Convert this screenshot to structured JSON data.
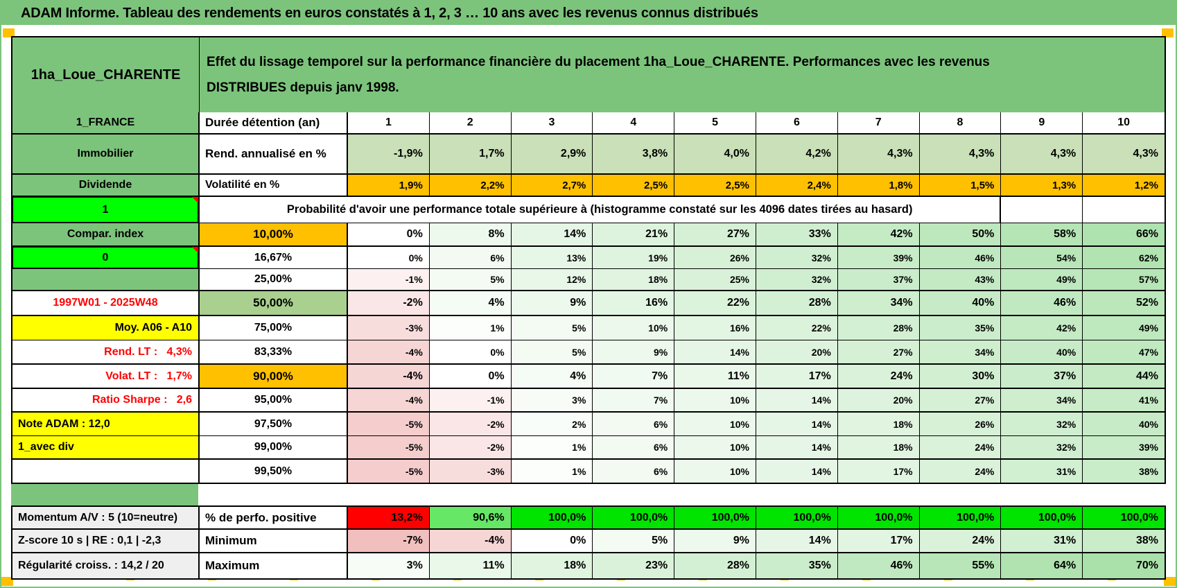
{
  "title": "ADAM Informe. Tableau des rendements en euros constatés à 1, 2, 3 … 10 ans avec les revenus connus distribués",
  "header": {
    "instrument": "1ha_Loue_CHARENTE",
    "description_lines": [
      "Effet du lissage temporel sur la performance financière du placement 1ha_Loue_CHARENTE. Performances avec les revenus",
      "DISTRIBUES depuis janv 1998."
    ]
  },
  "colors": {
    "frame_green": "#7cc47c",
    "cell_green": "#7cc47c",
    "bright_green": "#00ff00",
    "mid_green": "#a9d08e",
    "sage_green": "#c9e0b8",
    "orange": "#ffc000",
    "yellow": "#ffff00",
    "gray": "#efefef",
    "red_text": "#ff0000",
    "perfo_full_green": "#00e400",
    "perfo_light_green": "#66e766",
    "perfo_red": "#ff0000",
    "corner_marker": "#ffc000"
  },
  "grid": {
    "prob_header": "Probabilité d'avoir une performance totale supérieure à (histogramme constaté sur les 4096 dates tirées au hasard)",
    "rows": [
      {
        "name": "duration-header",
        "left": {
          "t": "1_FRANCE",
          "bg": "green",
          "align": "center"
        },
        "label": {
          "t": "Durée détention (an)",
          "align": "left"
        },
        "style": "plain",
        "bold": true,
        "align": "center",
        "thickB": true,
        "cells": [
          "1",
          "2",
          "3",
          "4",
          "5",
          "6",
          "7",
          "8",
          "9",
          "10"
        ]
      },
      {
        "name": "annualized-return",
        "left": {
          "t": "Immobilier",
          "bg": "green",
          "align": "center"
        },
        "label": {
          "t": "Rend. annualisé en %",
          "align": "left"
        },
        "style": "sage",
        "bold": true,
        "thickB": true,
        "cells": [
          "-1,9%",
          "1,7%",
          "2,9%",
          "3,8%",
          "4,0%",
          "4,2%",
          "4,3%",
          "4,3%",
          "4,3%",
          "4,3%"
        ]
      },
      {
        "name": "volatility",
        "left": {
          "t": "Dividende",
          "bg": "green",
          "align": "center"
        },
        "label": {
          "t": "Volatilité en %",
          "align": "left"
        },
        "style": "orange",
        "thickB": true,
        "cells": [
          "1,9%",
          "2,2%",
          "2,7%",
          "2,5%",
          "2,5%",
          "2,4%",
          "1,8%",
          "1,5%",
          "1,3%",
          "1,2%"
        ]
      },
      {
        "name": "probability-header",
        "left": {
          "t": "1",
          "bg": "bright",
          "align": "center",
          "marker": true
        },
        "merged": true,
        "tail": 2
      },
      {
        "name": "p10",
        "left": {
          "t": "Compar. index",
          "bg": "green",
          "align": "center"
        },
        "label": {
          "t": "10,00%",
          "bg": "orange",
          "align": "center"
        },
        "style": "grad",
        "bold": true,
        "thickB": true,
        "cells": [
          "0%",
          "8%",
          "14%",
          "21%",
          "27%",
          "33%",
          "42%",
          "50%",
          "58%",
          "66%"
        ]
      },
      {
        "name": "p16",
        "left": {
          "t": "0",
          "bg": "bright",
          "align": "center",
          "marker": true
        },
        "label": {
          "t": "16,67%",
          "align": "center"
        },
        "style": "grad",
        "cells": [
          "0%",
          "6%",
          "13%",
          "19%",
          "26%",
          "32%",
          "39%",
          "46%",
          "54%",
          "62%"
        ]
      },
      {
        "name": "p25",
        "left": {
          "t": "",
          "bg": "green"
        },
        "label": {
          "t": "25,00%",
          "align": "center"
        },
        "style": "grad",
        "thickB": true,
        "cells": [
          "-1%",
          "5%",
          "12%",
          "18%",
          "25%",
          "32%",
          "37%",
          "43%",
          "49%",
          "57%"
        ]
      },
      {
        "name": "p50",
        "left": {
          "t": "1997W01 - 2025W48",
          "bg": "white",
          "align": "center",
          "color": "red"
        },
        "label": {
          "t": "50,00%",
          "bg": "midgreen",
          "align": "center"
        },
        "style": "grad",
        "bold": true,
        "thickB": true,
        "cells": [
          "-2%",
          "4%",
          "9%",
          "16%",
          "22%",
          "28%",
          "34%",
          "40%",
          "46%",
          "52%"
        ]
      },
      {
        "name": "p75",
        "left": {
          "t": "Moy. A06 - A10",
          "bg": "yellow",
          "align": "right"
        },
        "label": {
          "t": "75,00%",
          "align": "center"
        },
        "style": "grad",
        "cells": [
          "-3%",
          "1%",
          "5%",
          "10%",
          "16%",
          "22%",
          "28%",
          "35%",
          "42%",
          "49%"
        ]
      },
      {
        "name": "p83",
        "left": {
          "t": "Rend. LT :   4,3%",
          "bg": "white",
          "align": "right",
          "color": "red"
        },
        "label": {
          "t": "83,33%",
          "align": "center"
        },
        "style": "grad",
        "thickB": true,
        "cells": [
          "-4%",
          "0%",
          "5%",
          "9%",
          "14%",
          "20%",
          "27%",
          "34%",
          "40%",
          "47%"
        ]
      },
      {
        "name": "p90",
        "left": {
          "t": "Volat. LT :   1,7%",
          "bg": "white",
          "align": "right",
          "color": "red"
        },
        "label": {
          "t": "90,00%",
          "bg": "orange",
          "align": "center"
        },
        "style": "grad",
        "bold": true,
        "thickB": true,
        "cells": [
          "-4%",
          "0%",
          "4%",
          "7%",
          "11%",
          "17%",
          "24%",
          "30%",
          "37%",
          "44%"
        ]
      },
      {
        "name": "p95",
        "left": {
          "t": "Ratio Sharpe :   2,6",
          "bg": "white",
          "align": "right",
          "color": "red"
        },
        "label": {
          "t": "95,00%",
          "align": "center"
        },
        "style": "grad",
        "thickB": true,
        "cells": [
          "-4%",
          "-1%",
          "3%",
          "7%",
          "10%",
          "14%",
          "20%",
          "27%",
          "34%",
          "41%"
        ]
      },
      {
        "name": "p97",
        "left": {
          "t": "Note ADAM : 12,0",
          "bg": "yellow",
          "align": "left"
        },
        "label": {
          "t": "97,50%",
          "align": "center"
        },
        "style": "grad",
        "cells": [
          "-5%",
          "-2%",
          "2%",
          "6%",
          "10%",
          "14%",
          "18%",
          "26%",
          "32%",
          "40%"
        ]
      },
      {
        "name": "p99",
        "left": {
          "t": "1_avec div",
          "bg": "yellow",
          "align": "left"
        },
        "label": {
          "t": "99,00%",
          "align": "center"
        },
        "style": "grad",
        "thickB": true,
        "cells": [
          "-5%",
          "-2%",
          "1%",
          "6%",
          "10%",
          "14%",
          "18%",
          "24%",
          "32%",
          "39%"
        ]
      },
      {
        "name": "p995",
        "left": {
          "t": "",
          "bg": "white"
        },
        "label": {
          "t": "99,50%",
          "align": "center"
        },
        "style": "grad",
        "cells": [
          "-5%",
          "-3%",
          "1%",
          "6%",
          "10%",
          "14%",
          "17%",
          "24%",
          "31%",
          "38%"
        ]
      }
    ],
    "footer_rows": [
      {
        "name": "positive-perf",
        "left": {
          "t": "Momentum A/V : 5 (10=neutre)",
          "bg": "gray",
          "align": "left"
        },
        "label": {
          "t": "% de perfo. positive",
          "align": "left"
        },
        "style": "perfo",
        "bold": true,
        "thickB": true,
        "cells": [
          "13,2%",
          "90,6%",
          "100,0%",
          "100,0%",
          "100,0%",
          "100,0%",
          "100,0%",
          "100,0%",
          "100,0%",
          "100,0%"
        ]
      },
      {
        "name": "minimum",
        "left": {
          "t": "Z-score 10 s | RE : 0,1 | -2,3",
          "bg": "gray",
          "align": "left"
        },
        "label": {
          "t": "Minimum",
          "align": "left"
        },
        "style": "grad",
        "bold": true,
        "thickB": true,
        "cells": [
          "-7%",
          "-4%",
          "0%",
          "5%",
          "9%",
          "14%",
          "17%",
          "24%",
          "31%",
          "38%"
        ]
      },
      {
        "name": "maximum",
        "left": {
          "t": "Régularité croiss. : 14,2 / 20",
          "bg": "gray",
          "align": "left"
        },
        "label": {
          "t": "Maximum",
          "align": "left"
        },
        "style": "grad",
        "bold": true,
        "cells": [
          "3%",
          "11%",
          "18%",
          "23%",
          "28%",
          "35%",
          "46%",
          "55%",
          "64%",
          "70%"
        ]
      }
    ]
  }
}
